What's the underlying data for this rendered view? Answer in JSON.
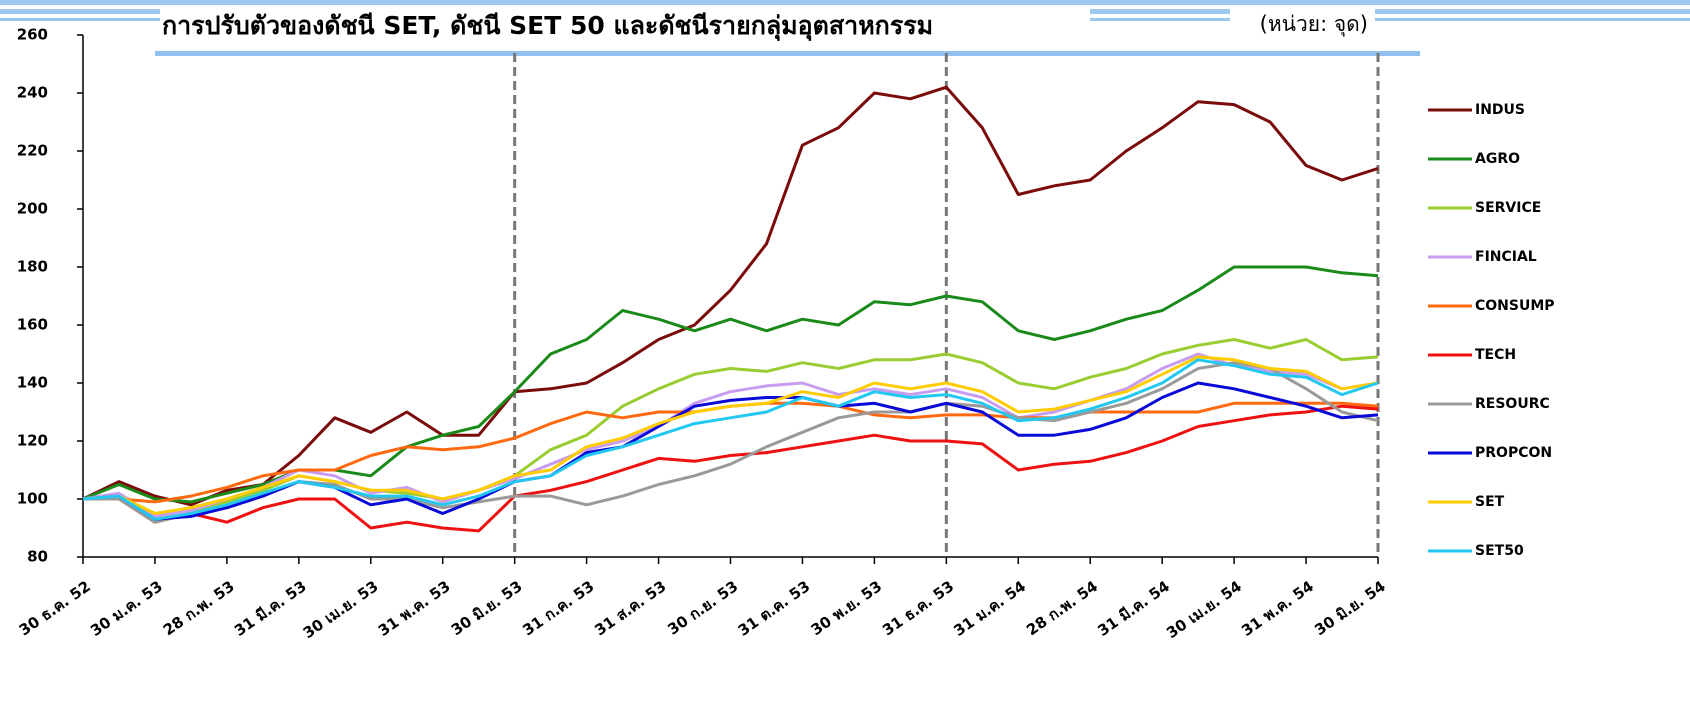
{
  "chart_data": {
    "type": "line",
    "title": "การปรับตัวของดัชนี SET, ดัชนี SET 50 และดัชนีรายกลุ่มอุตสาหกรรม",
    "subtitle": "(หน่วย: จุด)",
    "categories": [
      "30 ธ.ค. 52",
      null,
      "30 ม.ค. 53",
      null,
      "28 ก.พ. 53",
      null,
      "31 มี.ค. 53",
      null,
      "30 เม.ย. 53",
      null,
      "31 พ.ค. 53",
      null,
      "30 มิ.ย. 53",
      null,
      "31 ก.ค. 53",
      null,
      "31 ส.ค. 53",
      null,
      "30 ก.ย. 53",
      null,
      "31 ต.ค. 53",
      null,
      "30 พ.ย. 53",
      null,
      "31 ธ.ค. 53",
      null,
      "31 ม.ค. 54",
      null,
      "28 ก.พ. 54",
      null,
      "31 มี.ค. 54",
      null,
      "30 เม.ย. 54",
      null,
      "31 พ.ค. 54",
      null,
      "30 มิ.ย. 54"
    ],
    "series": [
      {
        "name": "INDUS",
        "color": "#7b0a0a",
        "values": [
          100,
          106,
          101,
          98,
          103,
          105,
          115,
          128,
          123,
          130,
          122,
          122,
          137,
          138,
          140,
          147,
          155,
          160,
          172,
          188,
          222,
          228,
          240,
          238,
          242,
          228,
          205,
          208,
          210,
          220,
          228,
          237,
          236,
          230,
          215,
          210,
          214
        ]
      },
      {
        "name": "AGRO",
        "color": "#1a8a1a",
        "values": [
          100,
          105,
          100,
          99,
          102,
          105,
          110,
          110,
          108,
          118,
          122,
          125,
          137,
          150,
          155,
          165,
          162,
          158,
          162,
          158,
          162,
          160,
          168,
          167,
          170,
          168,
          158,
          155,
          158,
          162,
          165,
          172,
          180,
          180,
          180,
          178,
          177
        ]
      },
      {
        "name": "SERVICE",
        "color": "#9acd32",
        "values": [
          100,
          101,
          95,
          96,
          99,
          103,
          108,
          106,
          103,
          102,
          100,
          103,
          108,
          117,
          122,
          132,
          138,
          143,
          145,
          144,
          147,
          145,
          148,
          148,
          150,
          147,
          140,
          138,
          142,
          145,
          150,
          153,
          155,
          152,
          155,
          148,
          149
        ]
      },
      {
        "name": "FINCIAL",
        "color": "#c89cf0",
        "values": [
          100,
          102,
          94,
          96,
          100,
          104,
          110,
          108,
          102,
          104,
          99,
          103,
          107,
          112,
          117,
          120,
          125,
          133,
          137,
          139,
          140,
          136,
          138,
          136,
          138,
          135,
          128,
          130,
          134,
          138,
          145,
          150,
          146,
          144,
          143,
          138,
          140
        ]
      },
      {
        "name": "CONSUMP",
        "color": "#ff6a10",
        "values": [
          100,
          100,
          99,
          101,
          104,
          108,
          110,
          110,
          115,
          118,
          117,
          118,
          121,
          126,
          130,
          128,
          130,
          130,
          132,
          133,
          133,
          132,
          129,
          128,
          129,
          129,
          128,
          128,
          130,
          130,
          130,
          130,
          133,
          133,
          133,
          133,
          132
        ]
      },
      {
        "name": "TECH",
        "color": "#ee1111",
        "values": [
          100,
          100,
          92,
          95,
          92,
          97,
          100,
          100,
          90,
          92,
          90,
          89,
          101,
          103,
          106,
          110,
          114,
          113,
          115,
          116,
          118,
          120,
          122,
          120,
          120,
          119,
          110,
          112,
          113,
          116,
          120,
          125,
          127,
          129,
          130,
          132,
          131
        ]
      },
      {
        "name": "RESOURC",
        "color": "#9a9a9a",
        "values": [
          100,
          100,
          92,
          95,
          97,
          101,
          106,
          105,
          100,
          100,
          97,
          99,
          101,
          101,
          98,
          101,
          105,
          108,
          112,
          118,
          123,
          128,
          130,
          130,
          133,
          132,
          128,
          127,
          130,
          133,
          138,
          145,
          147,
          145,
          138,
          130,
          127
        ]
      },
      {
        "name": "PROPCON",
        "color": "#0a0ad8",
        "values": [
          100,
          101,
          93,
          94,
          97,
          101,
          106,
          104,
          98,
          100,
          95,
          100,
          106,
          108,
          116,
          118,
          125,
          132,
          134,
          135,
          135,
          132,
          133,
          130,
          133,
          130,
          122,
          122,
          124,
          128,
          135,
          140,
          138,
          135,
          132,
          128,
          129
        ]
      },
      {
        "name": "SET",
        "color": "#ffcc00",
        "values": [
          100,
          101,
          95,
          97,
          100,
          104,
          108,
          106,
          103,
          103,
          100,
          103,
          108,
          110,
          118,
          121,
          126,
          130,
          132,
          133,
          137,
          135,
          140,
          138,
          140,
          137,
          130,
          131,
          134,
          137,
          143,
          149,
          148,
          145,
          144,
          138,
          140
        ]
      },
      {
        "name": "SET50",
        "color": "#22c8f0",
        "values": [
          100,
          101,
          93,
          95,
          98,
          102,
          106,
          104,
          101,
          101,
          98,
          101,
          106,
          108,
          115,
          118,
          122,
          126,
          128,
          130,
          135,
          132,
          137,
          135,
          136,
          133,
          127,
          128,
          131,
          135,
          140,
          148,
          146,
          143,
          142,
          136,
          140
        ]
      }
    ],
    "ylim": [
      80,
      260
    ],
    "yticks": [
      80,
      100,
      120,
      140,
      160,
      180,
      200,
      220,
      240,
      260
    ],
    "legend": "right"
  }
}
